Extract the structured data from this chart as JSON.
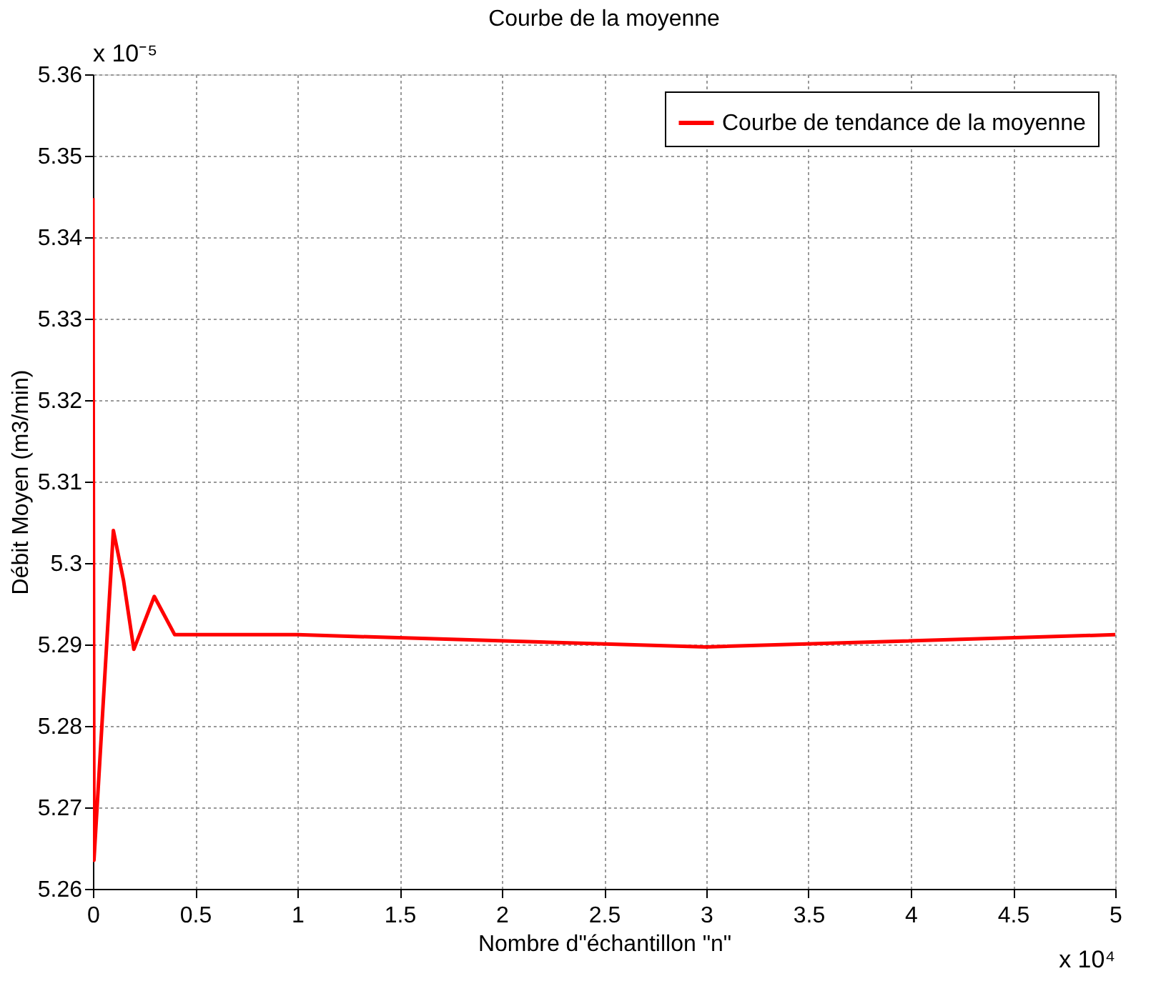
{
  "chart_data": {
    "type": "line",
    "title": "Courbe de la moyenne",
    "xlabel": "Nombre d\"échantillon \"n\"",
    "ylabel": "Débit Moyen (m3/min)",
    "series": [
      {
        "name": "Courbe de tendance de la moyenne",
        "color": "#ff0000",
        "x": [
          0,
          0.005,
          0.1,
          0.15,
          0.2,
          0.3,
          0.4,
          1,
          3,
          5
        ],
        "values": [
          5.3448,
          5.2635,
          5.304,
          5.2978,
          5.2894,
          5.2959,
          5.2912,
          5.2912,
          5.2897,
          5.2912
        ]
      }
    ],
    "xlim": [
      0,
      5
    ],
    "xticks": [
      0,
      0.5,
      1,
      1.5,
      2,
      2.5,
      3,
      3.5,
      4,
      4.5,
      5
    ],
    "ylim": [
      5.26,
      5.36
    ],
    "yticks": [
      5.26,
      5.27,
      5.28,
      5.29,
      5.3,
      5.31,
      5.32,
      5.33,
      5.34,
      5.35,
      5.36
    ],
    "annotations": [
      "x 10⁻⁵",
      "x 10⁴"
    ],
    "grid": true,
    "legend": "top right",
    "marker": "none",
    "line_style": "solid"
  }
}
